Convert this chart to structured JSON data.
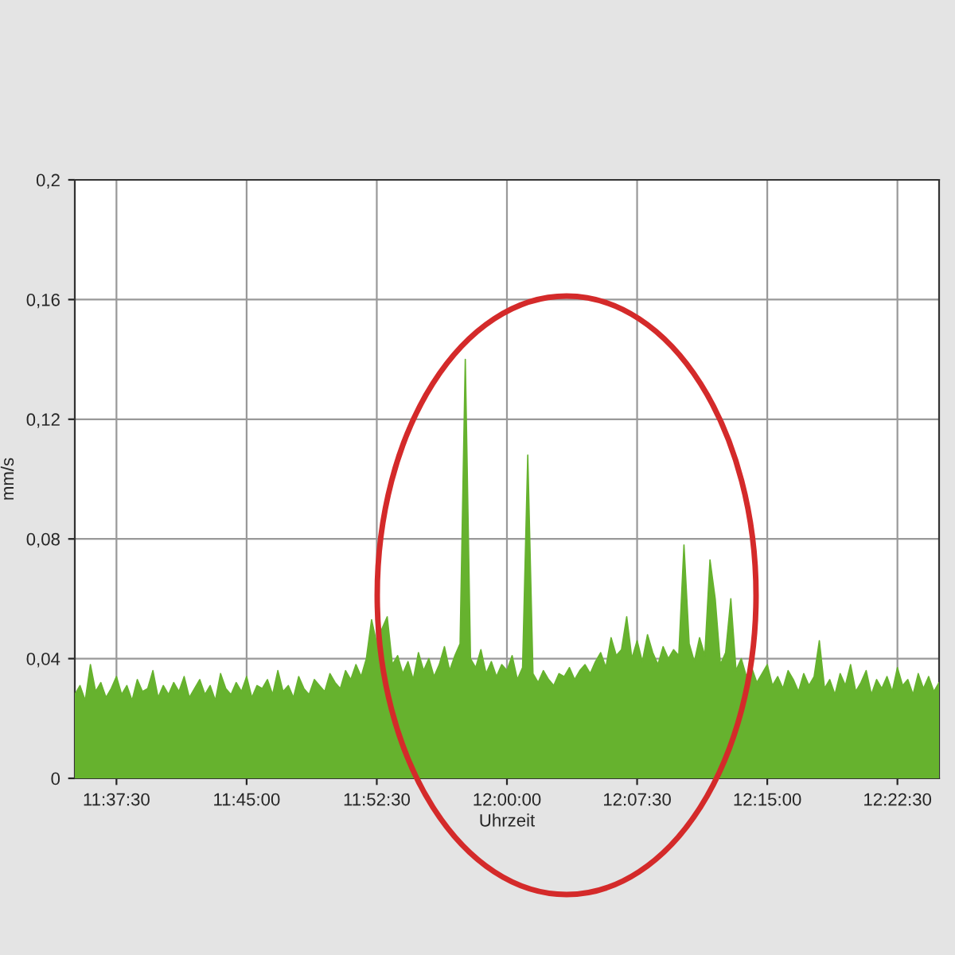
{
  "chart_data": {
    "type": "area",
    "xlabel": "Uhrzeit",
    "ylabel": "mm/s",
    "x": [
      11.585,
      11.59,
      11.595,
      11.6,
      11.605,
      11.61,
      11.615,
      11.62,
      11.625,
      11.63,
      11.635,
      11.64,
      11.645,
      11.65,
      11.655,
      11.66,
      11.665,
      11.67,
      11.675,
      11.68,
      11.685,
      11.69,
      11.695,
      11.7,
      11.705,
      11.71,
      11.715,
      11.72,
      11.725,
      11.73,
      11.735,
      11.74,
      11.745,
      11.75,
      11.755,
      11.76,
      11.765,
      11.77,
      11.775,
      11.78,
      11.785,
      11.79,
      11.795,
      11.8,
      11.805,
      11.81,
      11.815,
      11.82,
      11.825,
      11.83,
      11.835,
      11.84,
      11.845,
      11.85,
      11.855,
      11.86,
      11.865,
      11.87,
      11.875,
      11.88,
      11.885,
      11.89,
      11.895,
      11.9,
      11.905,
      11.91,
      11.915,
      11.92,
      11.925,
      11.93,
      11.935,
      11.94,
      11.945,
      11.95,
      11.955,
      11.96,
      11.965,
      11.97,
      11.975,
      11.98,
      11.985,
      11.99,
      11.995,
      12.0,
      12.005,
      12.01,
      12.015,
      12.02,
      12.025,
      12.03,
      12.035,
      12.04,
      12.045,
      12.05,
      12.055,
      12.06,
      12.065,
      12.07,
      12.075,
      12.08,
      12.085,
      12.09,
      12.095,
      12.1,
      12.105,
      12.11,
      12.115,
      12.12,
      12.125,
      12.13,
      12.135,
      12.14,
      12.145,
      12.15,
      12.155,
      12.16,
      12.165,
      12.17,
      12.175,
      12.18,
      12.185,
      12.19,
      12.195,
      12.2,
      12.205,
      12.21,
      12.215,
      12.22,
      12.225,
      12.23,
      12.235,
      12.24,
      12.245,
      12.25,
      12.255,
      12.26,
      12.265,
      12.27,
      12.275,
      12.28,
      12.285,
      12.29,
      12.295,
      12.3,
      12.305,
      12.31,
      12.315,
      12.32,
      12.325,
      12.33,
      12.335,
      12.34,
      12.345,
      12.35,
      12.355,
      12.36,
      12.365,
      12.37,
      12.375,
      12.38,
      12.385,
      12.39,
      12.395,
      12.4,
      12.405,
      12.41,
      12.415
    ],
    "series": [
      {
        "color": "#66b22e",
        "values": [
          0.028,
          0.031,
          0.026,
          0.038,
          0.029,
          0.032,
          0.027,
          0.03,
          0.034,
          0.028,
          0.031,
          0.026,
          0.033,
          0.029,
          0.03,
          0.036,
          0.027,
          0.031,
          0.028,
          0.032,
          0.029,
          0.034,
          0.027,
          0.03,
          0.033,
          0.028,
          0.031,
          0.026,
          0.035,
          0.03,
          0.028,
          0.032,
          0.029,
          0.034,
          0.027,
          0.031,
          0.03,
          0.033,
          0.028,
          0.036,
          0.029,
          0.031,
          0.027,
          0.034,
          0.03,
          0.028,
          0.033,
          0.031,
          0.029,
          0.035,
          0.032,
          0.03,
          0.036,
          0.033,
          0.038,
          0.034,
          0.04,
          0.053,
          0.045,
          0.05,
          0.054,
          0.038,
          0.041,
          0.035,
          0.039,
          0.033,
          0.042,
          0.036,
          0.04,
          0.034,
          0.038,
          0.044,
          0.036,
          0.041,
          0.045,
          0.14,
          0.04,
          0.037,
          0.043,
          0.035,
          0.039,
          0.034,
          0.038,
          0.036,
          0.041,
          0.033,
          0.037,
          0.108,
          0.035,
          0.032,
          0.036,
          0.033,
          0.031,
          0.035,
          0.034,
          0.037,
          0.033,
          0.036,
          0.038,
          0.035,
          0.039,
          0.042,
          0.037,
          0.047,
          0.041,
          0.043,
          0.054,
          0.04,
          0.046,
          0.039,
          0.048,
          0.042,
          0.038,
          0.044,
          0.04,
          0.043,
          0.041,
          0.078,
          0.045,
          0.039,
          0.047,
          0.041,
          0.073,
          0.06,
          0.038,
          0.042,
          0.06,
          0.036,
          0.04,
          0.034,
          0.037,
          0.032,
          0.035,
          0.038,
          0.031,
          0.034,
          0.03,
          0.036,
          0.033,
          0.029,
          0.035,
          0.031,
          0.034,
          0.046,
          0.03,
          0.033,
          0.028,
          0.035,
          0.031,
          0.038,
          0.029,
          0.032,
          0.036,
          0.028,
          0.033,
          0.03,
          0.034,
          0.029,
          0.037,
          0.031,
          0.033,
          0.028,
          0.035,
          0.03,
          0.034,
          0.029,
          0.032
        ]
      }
    ],
    "xlim": [
      11.585,
      12.415
    ],
    "xticks": [
      {
        "value": 11.625,
        "label": "11:37:30"
      },
      {
        "value": 11.75,
        "label": "11:45:00"
      },
      {
        "value": 11.875,
        "label": "11:52:30"
      },
      {
        "value": 12.0,
        "label": "12:00:00"
      },
      {
        "value": 12.125,
        "label": "12:07:30"
      },
      {
        "value": 12.25,
        "label": "12:15:00"
      },
      {
        "value": 12.375,
        "label": "12:22:30"
      }
    ],
    "ylim": [
      0,
      0.2
    ],
    "yticks": [
      0,
      {
        "value": 0.04,
        "label": "0,04"
      },
      {
        "value": 0.08,
        "label": "0,08"
      },
      {
        "value": 0.12,
        "label": "0,12"
      },
      {
        "value": 0.16,
        "label": "0,16"
      },
      {
        "value": 0.2,
        "label": "0,2"
      }
    ],
    "grid": true
  }
}
